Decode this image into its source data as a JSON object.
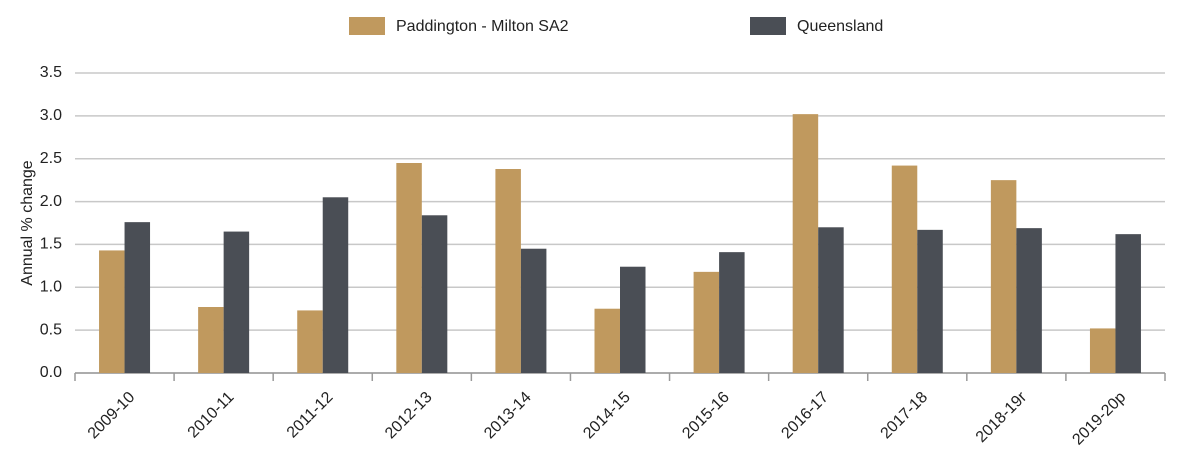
{
  "chart_data": {
    "type": "bar",
    "y_label": "Annual % change",
    "categories": [
      "2009-10",
      "2010-11",
      "2011-12",
      "2012-13",
      "2013-14",
      "2014-15",
      "2015-16",
      "2016-17",
      "2017-18",
      "2018-19r",
      "2019-20p"
    ],
    "series": [
      {
        "name": "Paddington - Milton SA2",
        "color": "#c0995e",
        "values": [
          1.43,
          0.77,
          0.73,
          2.45,
          2.38,
          0.75,
          1.18,
          3.02,
          2.42,
          2.25,
          0.52
        ]
      },
      {
        "name": "Queensland",
        "color": "#4a4e55",
        "values": [
          1.76,
          1.65,
          2.05,
          1.84,
          1.45,
          1.24,
          1.41,
          1.7,
          1.67,
          1.69,
          1.62
        ]
      }
    ],
    "ylim": [
      0,
      3.5
    ],
    "yticks": [
      {
        "value": 0,
        "label": "0.0"
      },
      0.5,
      {
        "value": 1,
        "label": "1.0"
      },
      1.5,
      {
        "value": 2,
        "label": "2.0"
      },
      2.5,
      {
        "value": 3,
        "label": "3.0"
      },
      3.5
    ],
    "grid": true,
    "legend": "top"
  }
}
